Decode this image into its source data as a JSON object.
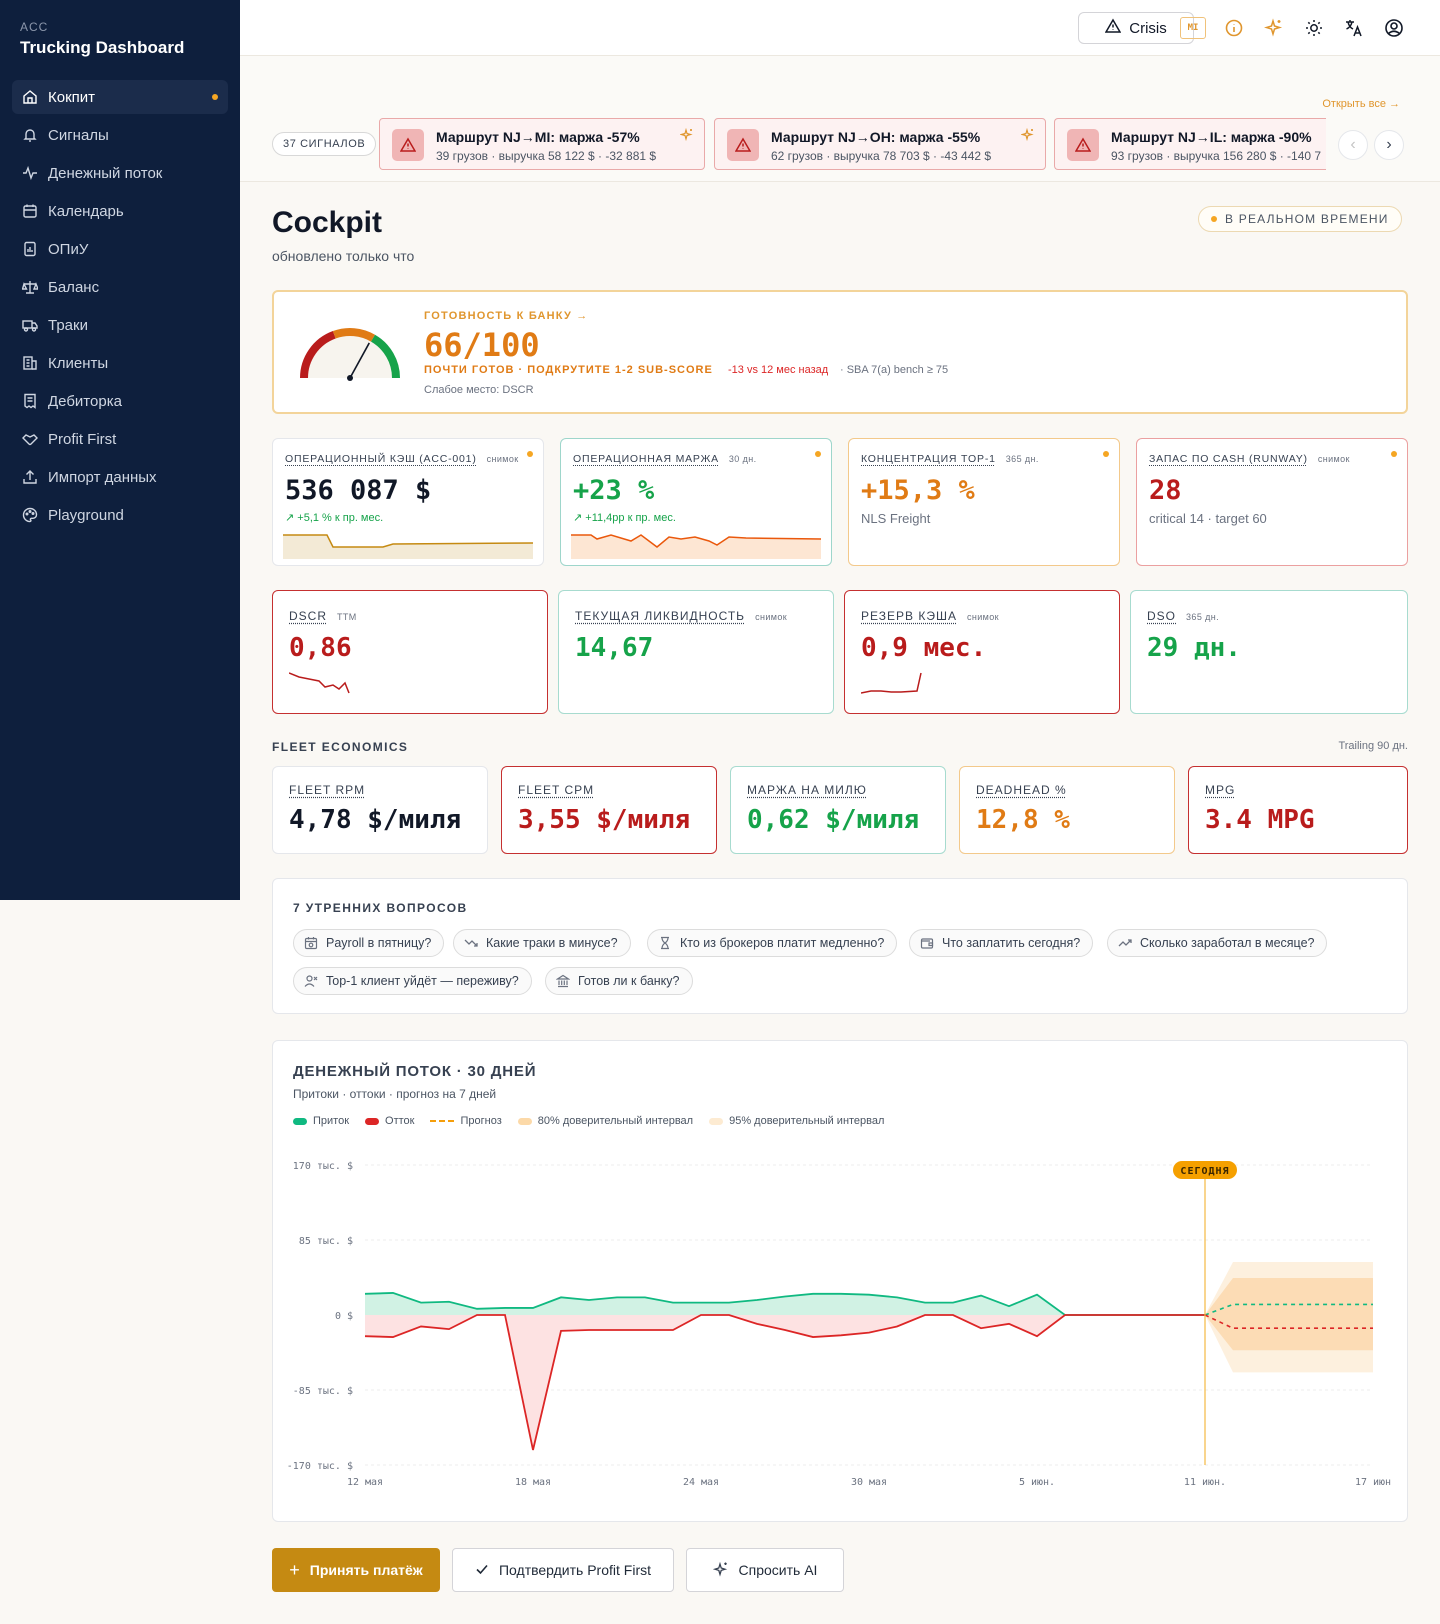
{
  "app": {
    "small": "ACC",
    "title": "Trucking Dashboard"
  },
  "sidebar": {
    "items": [
      {
        "label": "Кокпит",
        "icon": "home-icon"
      },
      {
        "label": "Сигналы",
        "icon": "bell-icon"
      },
      {
        "label": "Денежный поток",
        "icon": "pulse-icon"
      },
      {
        "label": "Календарь",
        "icon": "calendar-icon"
      },
      {
        "label": "ОПиУ",
        "icon": "report-icon"
      },
      {
        "label": "Баланс",
        "icon": "scale-icon"
      },
      {
        "label": "Траки",
        "icon": "truck-icon"
      },
      {
        "label": "Клиенты",
        "icon": "building-icon"
      },
      {
        "label": "Дебиторка",
        "icon": "receipt-icon"
      },
      {
        "label": "Profit First",
        "icon": "handshake-icon"
      },
      {
        "label": "Импорт данных",
        "icon": "upload-icon"
      },
      {
        "label": "Playground",
        "icon": "palette-icon"
      }
    ]
  },
  "topbar": {
    "crisis_label": "Crisis",
    "mi_badge": "MI"
  },
  "alerts": {
    "open_all": "Открыть все →",
    "signals_count": "37 СИГНАЛОВ",
    "items": [
      {
        "title": "Маршрут NJ→MI: маржа -57%",
        "sub": "39 грузов · выручка 58 122 $ · -32 881 $"
      },
      {
        "title": "Маршрут NJ→OH: маржа -55%",
        "sub": "62 грузов · выручка 78 703 $ · -43 442 $"
      },
      {
        "title": "Маршрут NJ→IL: маржа -90%",
        "sub": "93 грузов · выручка 156 280 $ · -140 7"
      }
    ]
  },
  "header": {
    "title": "Cockpit",
    "subtitle": "обновлено только что",
    "realtime": "В РЕАЛЬНОМ ВРЕМЕНИ"
  },
  "bank": {
    "label": "ГОТОВНОСТЬ К БАНКУ →",
    "score": "66/100",
    "score_value": 66,
    "status": "ПОЧТИ ГОТОВ · ПОДКРУТИТЕ 1-2 SUB-SCORE",
    "delta": "-13 vs 12 мес назад",
    "bench": "· SBA 7(a) bench ≥ 75",
    "weak": "Слабое место: DSCR"
  },
  "kpi": [
    {
      "label": "ОПЕРАЦИОННЫЙ КЭШ (ACC-001)",
      "tag": "снимок",
      "value": "536 087 $",
      "delta": "↗ +5,1 %   к пр. мес.",
      "color": "#111827",
      "border": "#e5e7eb"
    },
    {
      "label": "ОПЕРАЦИОННАЯ МАРЖА",
      "tag": "30 дн.",
      "value": "+23 %",
      "delta": "↗ +11,4pp   к пр. мес.",
      "color": "#16a34a",
      "border": "#9ed6cb"
    },
    {
      "label": "КОНЦЕНТРАЦИЯ TOP-1",
      "tag": "365 дн.",
      "value": "+15,3 %",
      "note": "NLS Freight",
      "color": "#e07b15",
      "border": "#f3c98b"
    },
    {
      "label": "ЗАПАС ПО CASH (RUNWAY)",
      "tag": "снимок",
      "value": "28",
      "note": "critical 14 · target 60",
      "color": "#b91c1c",
      "border": "#eba0a0"
    }
  ],
  "kpi2": [
    {
      "label": "DSCR",
      "tag": "TTM",
      "value": "0,86",
      "color": "#b91c1c",
      "border": "#c53030"
    },
    {
      "label": "ТЕКУЩАЯ ЛИКВИДНОСТЬ",
      "tag": "снимок",
      "value": "14,67",
      "color": "#16a34a",
      "border": "#a7dbcf"
    },
    {
      "label": "РЕЗЕРВ КЭША",
      "tag": "снимок",
      "value": "0,9 мес.",
      "color": "#b91c1c",
      "border": "#c53030"
    },
    {
      "label": "DSO",
      "tag": "365 дн.",
      "value": "29 дн.",
      "color": "#16a34a",
      "border": "#a7dbcf"
    }
  ],
  "fleet": {
    "section": "FLEET ECONOMICS",
    "trailing": "Trailing 90 дн.",
    "items": [
      {
        "label": "FLEET RPM",
        "value": "4,78 $/миля",
        "color": "#111827",
        "border": "#e5e7eb"
      },
      {
        "label": "FLEET CPM",
        "value": "3,55 $/миля",
        "color": "#b91c1c",
        "border": "#c53030"
      },
      {
        "label": "МАРЖА НА МИЛЮ",
        "value": "0,62 $/миля",
        "color": "#16a34a",
        "border": "#a7dbcf"
      },
      {
        "label": "DEADHEAD %",
        "value": "12,8 %",
        "color": "#e07b15",
        "border": "#f3c98b"
      },
      {
        "label": "MPG",
        "value": "3.4 MPG",
        "color": "#b91c1c",
        "border": "#c53030"
      }
    ]
  },
  "questions": {
    "title": "7 УТРЕННИХ ВОПРОСОВ",
    "items": [
      {
        "label": "Payroll в пятницу?",
        "icon": "calendar-clock-icon"
      },
      {
        "label": "Какие траки в минусе?",
        "icon": "trend-down-icon"
      },
      {
        "label": "Кто из брокеров платит медленно?",
        "icon": "hourglass-icon"
      },
      {
        "label": "Что заплатить сегодня?",
        "icon": "wallet-icon"
      },
      {
        "label": "Сколько заработал в месяце?",
        "icon": "trend-up-icon"
      },
      {
        "label": "Top-1 клиент уйдёт — переживу?",
        "icon": "user-x-icon"
      },
      {
        "label": "Готов ли к банку?",
        "icon": "bank-icon"
      }
    ]
  },
  "cashflow": {
    "title": "ДЕНЕЖНЫЙ ПОТОК · 30 ДНЕЙ",
    "subtitle": "Притоки · оттоки · прогноз на 7 дней",
    "legend": [
      {
        "label": "Приток",
        "color": "#10b981"
      },
      {
        "label": "Отток",
        "color": "#dc2626"
      },
      {
        "label": "Прогноз",
        "color": "#f59e0b"
      },
      {
        "label": "80% доверительный интервал",
        "color": "#fcd9a8"
      },
      {
        "label": "95% доверительный интервал",
        "color": "#fdebd2"
      }
    ],
    "today_label": "СЕГОДНЯ"
  },
  "chart_data": {
    "type": "area",
    "ytick_labels": [
      "170 тыс. $",
      "85 тыс. $",
      "0 $",
      "-85 тыс. $",
      "-170 тыс. $"
    ],
    "ytick_values": [
      170000,
      85000,
      0,
      -85000,
      -170000
    ],
    "xtick_labels": [
      "12 мая",
      "18 мая",
      "24 мая",
      "30 мая",
      "5 июн.",
      "11 июн.",
      "17 июн"
    ],
    "ylim": [
      -170000,
      170000
    ],
    "x": [
      "12 мая",
      "13 мая",
      "14 мая",
      "15 мая",
      "16 мая",
      "17 мая",
      "18 мая",
      "19 мая",
      "20 мая",
      "21 мая",
      "22 мая",
      "23 мая",
      "24 мая",
      "25 мая",
      "26 мая",
      "27 мая",
      "28 мая",
      "29 мая",
      "30 мая",
      "31 мая",
      "1 июн.",
      "2 июн.",
      "3 июн.",
      "4 июн.",
      "5 июн.",
      "6 июн.",
      "7 июн.",
      "8 июн.",
      "9 июн.",
      "10 июн.",
      "11 июн."
    ],
    "series": [
      {
        "name": "Приток",
        "values": [
          24000,
          25000,
          14000,
          15000,
          7000,
          8000,
          8000,
          20000,
          17000,
          20000,
          20000,
          14000,
          14000,
          14000,
          17000,
          21000,
          24000,
          24000,
          23000,
          20000,
          14000,
          14000,
          22000,
          10000,
          23000,
          0,
          0,
          0,
          0,
          0,
          0
        ]
      },
      {
        "name": "Отток",
        "values": [
          -24000,
          -25000,
          -13000,
          -16000,
          0,
          0,
          -153000,
          -18000,
          -17000,
          -17000,
          -17000,
          -17000,
          0,
          0,
          -10000,
          -17000,
          -25000,
          -23000,
          -20000,
          -13000,
          0,
          0,
          -15000,
          -10000,
          -24000,
          0,
          0,
          0,
          0,
          0,
          0
        ]
      }
    ],
    "forecast": {
      "x": [
        "11 июн.",
        "12 июн.",
        "13 июн.",
        "14 июн.",
        "15 июн.",
        "16 июн.",
        "17 июн"
      ],
      "inflow": [
        0,
        12000,
        12000,
        12000,
        12000,
        12000,
        12000
      ],
      "outflow": [
        0,
        -15000,
        -15000,
        -15000,
        -15000,
        -15000,
        -15000
      ],
      "ci80": [
        [
          -40000,
          42000
        ],
        [
          -40000,
          42000
        ],
        [
          -40000,
          42000
        ],
        [
          -40000,
          42000
        ],
        [
          -40000,
          42000
        ],
        [
          -40000,
          42000
        ],
        [
          -40000,
          42000
        ]
      ],
      "ci95": [
        [
          -65000,
          60000
        ],
        [
          -65000,
          60000
        ],
        [
          -65000,
          60000
        ],
        [
          -65000,
          60000
        ],
        [
          -65000,
          60000
        ],
        [
          -65000,
          60000
        ],
        [
          -65000,
          60000
        ]
      ]
    },
    "today": "11 июн."
  },
  "buttons": {
    "accept": "Принять платёж",
    "confirm": "Подтвердить Profit First",
    "ask": "Спросить AI"
  }
}
